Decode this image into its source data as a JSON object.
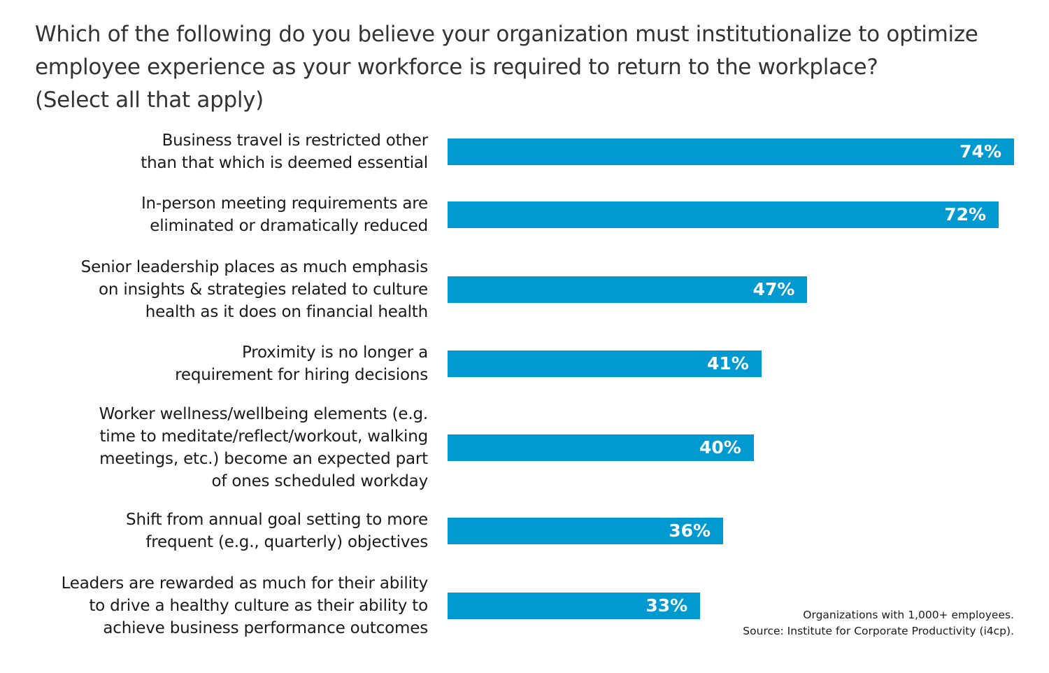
{
  "chart_data": {
    "type": "bar",
    "orientation": "horizontal",
    "title": "Which of the following do you believe your organization must institutionalize to optimize\nemployee experience as your workforce is required to return to the workplace?\n(Select all that apply)",
    "categories": [
      "Business travel is restricted other\nthan that which is deemed essential",
      "In-person meeting requirements are\neliminated or dramatically reduced",
      "Senior leadership places as much emphasis\non insights & strategies related to culture\nhealth as it does on financial health",
      "Proximity is no longer a\nrequirement for hiring decisions",
      "Worker wellness/wellbeing elements (e.g.\ntime to meditate/reflect/workout, walking\nmeetings, etc.) become an expected part\nof ones scheduled workday",
      "Shift from annual goal setting to more\nfrequent (e.g., quarterly) objectives",
      "Leaders are rewarded as much for their ability\nto drive a healthy culture as their ability to\nachieve business performance outcomes"
    ],
    "values": [
      74,
      72,
      47,
      41,
      40,
      36,
      33
    ],
    "value_labels": [
      "74%",
      "72%",
      "47%",
      "41%",
      "40%",
      "36%",
      "33%"
    ],
    "xlim": [
      0,
      74
    ],
    "grid": false,
    "bar_color": "#0099d0",
    "footnote": "Organizations with 1,000+ employees.\nSource: Institute for Corporate Productivity (i4cp)."
  }
}
